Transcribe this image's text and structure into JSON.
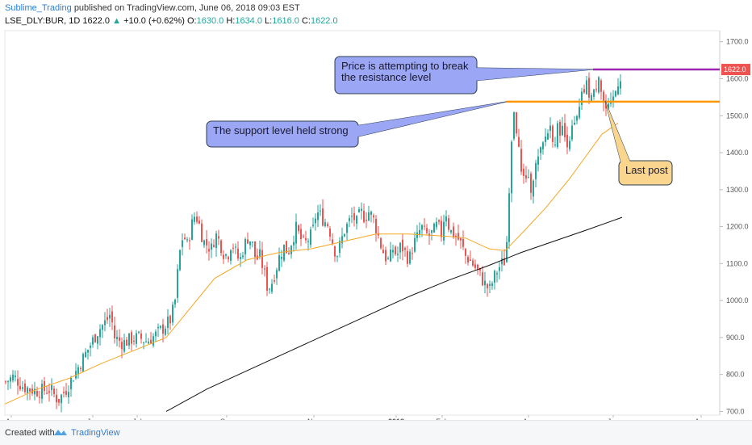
{
  "header": {
    "author": "Sublime_Trading",
    "published": "published on TradingView.com, June 06, 2018 09:03 EST",
    "symbol": "LSE_DLY:BUR, 1D",
    "last": "1622.0",
    "change": "+10.0 (+0.62%)",
    "o_label": "O:",
    "o": "1630.0",
    "h_label": "H:",
    "h": "1634.0",
    "l_label": "L:",
    "l": "1616.0",
    "c_label": "C:",
    "c": "1622.0"
  },
  "footer": {
    "created": "Created with",
    "brand": "TradingView"
  },
  "colors": {
    "up": "#26a69a",
    "down": "#ef5350",
    "ma_short": "#f5a623",
    "ma_long": "#111111",
    "resistance": "#9c27b0",
    "support": "#ff9800",
    "callout_blue": "#9ba6f5",
    "callout_orange": "#f9d58e"
  },
  "chart_data": {
    "type": "candlestick",
    "x_ticks": [
      "Apr",
      "Jun",
      "Jul",
      "Sep",
      "Nov",
      "2018",
      "Feb",
      "Apr",
      "Jun",
      "Aug"
    ],
    "y_ticks": [
      "700.0",
      "800.0",
      "900.0",
      "1000.0",
      "1100.0",
      "1200.0",
      "1300.0",
      "1400.0",
      "1500.0",
      "1600.0",
      "1700.0"
    ],
    "ylim": [
      690,
      1730
    ],
    "last_price_label": "1622.0",
    "resistance_level": 1625,
    "support_level": 1538,
    "close_path": [
      [
        0,
        780
      ],
      [
        10,
        795
      ],
      [
        20,
        770
      ],
      [
        30,
        760
      ],
      [
        40,
        755
      ],
      [
        55,
        760
      ],
      [
        65,
        730
      ],
      [
        75,
        760
      ],
      [
        85,
        800
      ],
      [
        95,
        840
      ],
      [
        105,
        880
      ],
      [
        115,
        920
      ],
      [
        125,
        945
      ],
      [
        130,
        965
      ],
      [
        135,
        900
      ],
      [
        145,
        885
      ],
      [
        155,
        895
      ],
      [
        165,
        900
      ],
      [
        175,
        890
      ],
      [
        185,
        905
      ],
      [
        195,
        925
      ],
      [
        205,
        950
      ],
      [
        210,
        1000
      ],
      [
        215,
        1120
      ],
      [
        220,
        1180
      ],
      [
        225,
        1150
      ],
      [
        230,
        1200
      ],
      [
        235,
        1235
      ],
      [
        240,
        1205
      ],
      [
        245,
        1160
      ],
      [
        250,
        1150
      ],
      [
        255,
        1140
      ],
      [
        260,
        1180
      ],
      [
        265,
        1160
      ],
      [
        270,
        1130
      ],
      [
        275,
        1120
      ],
      [
        280,
        1160
      ],
      [
        285,
        1130
      ],
      [
        290,
        1105
      ],
      [
        295,
        1145
      ],
      [
        300,
        1170
      ],
      [
        305,
        1160
      ],
      [
        310,
        1110
      ],
      [
        315,
        1120
      ],
      [
        320,
        1080
      ],
      [
        325,
        1030
      ],
      [
        330,
        1050
      ],
      [
        335,
        1085
      ],
      [
        340,
        1125
      ],
      [
        345,
        1145
      ],
      [
        350,
        1130
      ],
      [
        355,
        1165
      ],
      [
        360,
        1195
      ],
      [
        365,
        1170
      ],
      [
        370,
        1150
      ],
      [
        375,
        1165
      ],
      [
        380,
        1180
      ],
      [
        385,
        1240
      ],
      [
        390,
        1230
      ],
      [
        395,
        1215
      ],
      [
        400,
        1205
      ],
      [
        405,
        1160
      ],
      [
        410,
        1120
      ],
      [
        415,
        1155
      ],
      [
        420,
        1190
      ],
      [
        425,
        1210
      ],
      [
        430,
        1230
      ],
      [
        435,
        1210
      ],
      [
        440,
        1240
      ],
      [
        445,
        1225
      ],
      [
        450,
        1240
      ],
      [
        455,
        1225
      ],
      [
        460,
        1190
      ],
      [
        465,
        1150
      ],
      [
        470,
        1120
      ],
      [
        475,
        1105
      ],
      [
        480,
        1140
      ],
      [
        485,
        1120
      ],
      [
        490,
        1150
      ],
      [
        495,
        1130
      ],
      [
        500,
        1110
      ],
      [
        505,
        1150
      ],
      [
        510,
        1170
      ],
      [
        515,
        1200
      ],
      [
        520,
        1180
      ],
      [
        525,
        1175
      ],
      [
        530,
        1185
      ],
      [
        535,
        1205
      ],
      [
        540,
        1180
      ],
      [
        545,
        1250
      ],
      [
        550,
        1190
      ],
      [
        555,
        1180
      ],
      [
        560,
        1170
      ],
      [
        565,
        1150
      ],
      [
        570,
        1120
      ],
      [
        575,
        1110
      ],
      [
        580,
        1095
      ],
      [
        585,
        1080
      ],
      [
        590,
        1060
      ],
      [
        595,
        1040
      ],
      [
        600,
        1030
      ],
      [
        605,
        1060
      ],
      [
        610,
        1085
      ],
      [
        615,
        1100
      ],
      [
        620,
        1110
      ],
      [
        625,
        1360
      ],
      [
        630,
        1520
      ],
      [
        635,
        1430
      ],
      [
        640,
        1320
      ],
      [
        645,
        1340
      ],
      [
        650,
        1300
      ],
      [
        655,
        1350
      ],
      [
        660,
        1380
      ],
      [
        665,
        1410
      ],
      [
        670,
        1450
      ],
      [
        675,
        1470
      ],
      [
        680,
        1430
      ],
      [
        685,
        1470
      ],
      [
        690,
        1460
      ],
      [
        695,
        1430
      ],
      [
        700,
        1450
      ],
      [
        705,
        1470
      ],
      [
        710,
        1500
      ],
      [
        715,
        1560
      ],
      [
        720,
        1580
      ],
      [
        725,
        1550
      ],
      [
        730,
        1560
      ],
      [
        735,
        1620
      ],
      [
        740,
        1540
      ],
      [
        745,
        1510
      ],
      [
        750,
        1520
      ],
      [
        755,
        1560
      ],
      [
        760,
        1600
      ],
      [
        765,
        1622
      ]
    ],
    "ma_short": [
      [
        0,
        720
      ],
      [
        40,
        760
      ],
      [
        80,
        790
      ],
      [
        120,
        830
      ],
      [
        160,
        865
      ],
      [
        200,
        900
      ],
      [
        230,
        980
      ],
      [
        260,
        1060
      ],
      [
        300,
        1110
      ],
      [
        340,
        1130
      ],
      [
        380,
        1140
      ],
      [
        420,
        1160
      ],
      [
        460,
        1180
      ],
      [
        500,
        1180
      ],
      [
        540,
        1175
      ],
      [
        570,
        1170
      ],
      [
        600,
        1140
      ],
      [
        620,
        1135
      ],
      [
        640,
        1180
      ],
      [
        670,
        1250
      ],
      [
        700,
        1330
      ],
      [
        720,
        1390
      ],
      [
        740,
        1450
      ],
      [
        760,
        1480
      ]
    ],
    "ma_long": [
      [
        200,
        700
      ],
      [
        250,
        760
      ],
      [
        300,
        810
      ],
      [
        350,
        860
      ],
      [
        400,
        910
      ],
      [
        450,
        960
      ],
      [
        500,
        1010
      ],
      [
        550,
        1055
      ],
      [
        600,
        1095
      ],
      [
        640,
        1130
      ],
      [
        680,
        1160
      ],
      [
        720,
        1190
      ],
      [
        765,
        1225
      ]
    ],
    "annotations": [
      {
        "id": "resistance",
        "text_lines": [
          "Price is attempting to break",
          "the resistance level"
        ]
      },
      {
        "id": "support",
        "text_lines": [
          "The support level held strong"
        ]
      },
      {
        "id": "last",
        "text_lines": [
          "Last post"
        ]
      }
    ]
  }
}
